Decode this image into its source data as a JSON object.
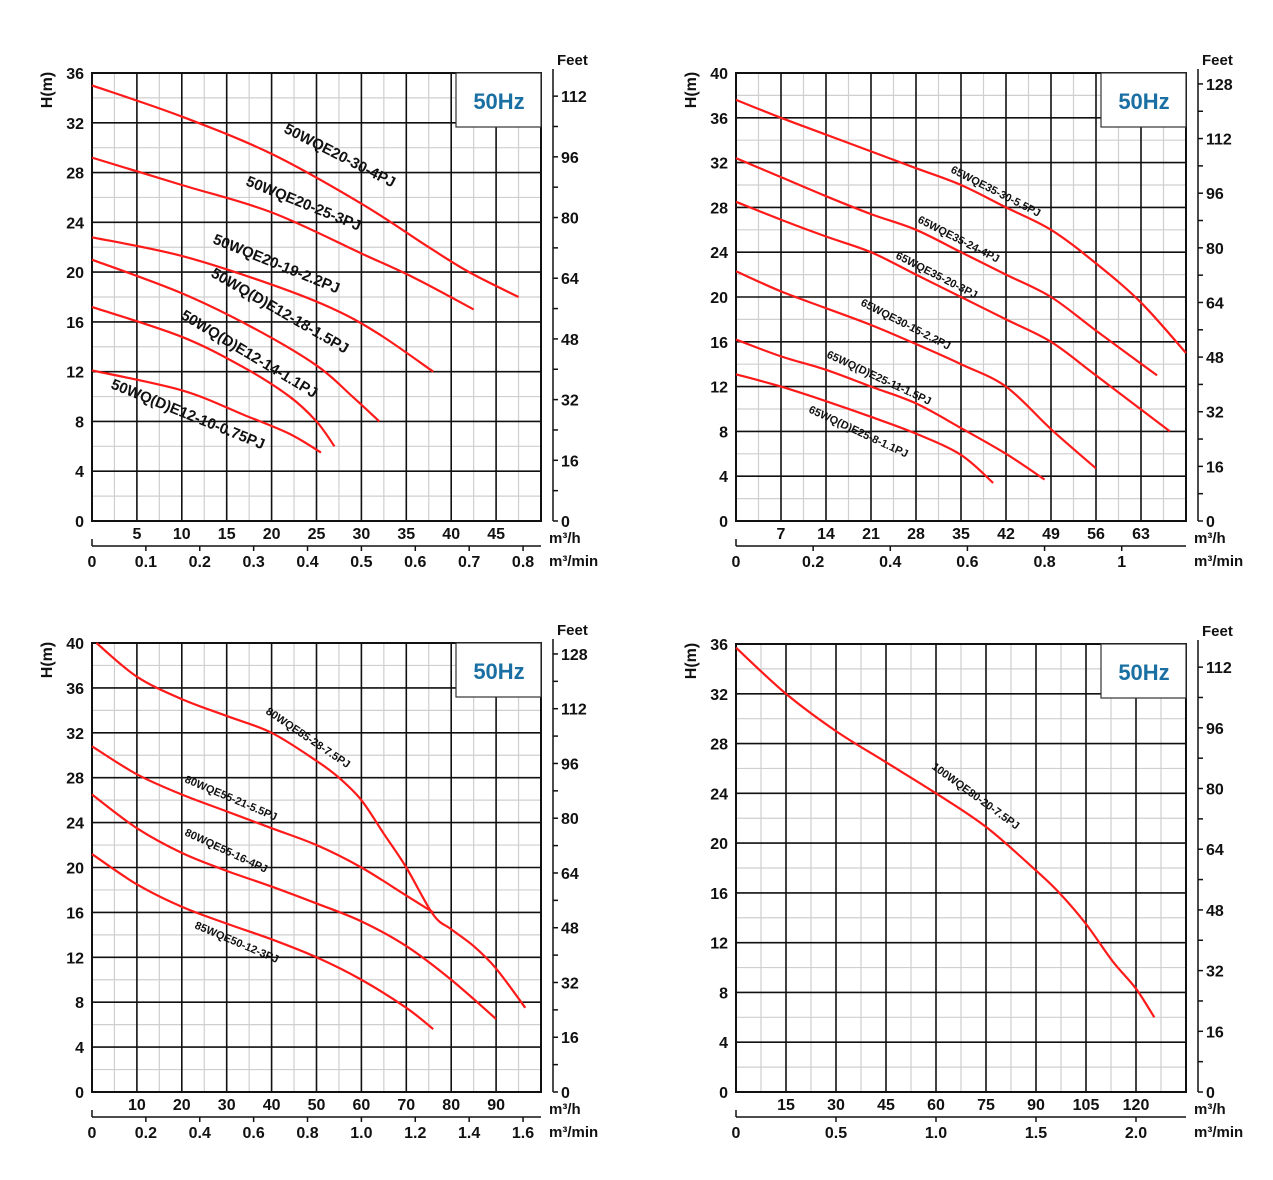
{
  "chart_data": [
    {
      "type": "line",
      "title": "",
      "badge": "50Hz",
      "ylabel": "H(m)",
      "ylabel_right": "Feet",
      "xlabel": "m³/h",
      "xlabel_secondary": "m³/min",
      "ylim": [
        0,
        36
      ],
      "xlim": [
        0,
        50
      ],
      "yticks": [
        0,
        4,
        8,
        12,
        16,
        20,
        24,
        28,
        32,
        36
      ],
      "xticks": [
        5,
        10,
        15,
        20,
        25,
        30,
        35,
        40,
        45
      ],
      "x2lim": [
        0,
        0.8333
      ],
      "x2ticks": [
        0,
        0.1,
        0.2,
        0.3,
        0.4,
        0.5,
        0.6,
        0.7,
        0.8
      ],
      "x2ticklabels": [
        "0",
        "0.1",
        "0.2",
        "0.3",
        "0.4",
        "0.5",
        "0.6",
        "0.7",
        "0.8"
      ],
      "y2lim": [
        0,
        118.1
      ],
      "y2ticks": [
        0,
        16,
        32,
        48,
        64,
        80,
        96,
        112
      ],
      "grid": true,
      "series": [
        {
          "name": "50WQE20-30-4PJ",
          "x": [
            0,
            10,
            20,
            30,
            37.5,
            42,
            47.5
          ],
          "y": [
            35,
            32.5,
            29.5,
            25.5,
            22,
            20,
            18
          ]
        },
        {
          "name": "50WQE20-25-3PJ",
          "x": [
            0,
            10,
            20,
            30,
            36,
            42.5
          ],
          "y": [
            29.2,
            27,
            24.8,
            21.5,
            19.5,
            17
          ]
        },
        {
          "name": "50WQE20-19-2.2PJ",
          "x": [
            0,
            10,
            20,
            27,
            32,
            38
          ],
          "y": [
            22.8,
            21.3,
            19,
            17,
            15,
            12
          ]
        },
        {
          "name": "50WQ(D)E12-18-1.5PJ",
          "x": [
            0,
            10,
            18,
            25,
            29,
            32
          ],
          "y": [
            21,
            18.3,
            15.5,
            12.5,
            10,
            8
          ]
        },
        {
          "name": "50WQ(D)E12-14-1.1PJ",
          "x": [
            0,
            10,
            17,
            22,
            25,
            27
          ],
          "y": [
            17.2,
            14.8,
            12.3,
            10,
            8,
            6
          ]
        },
        {
          "name": "50WQ(D)E12-10-0.75PJ",
          "x": [
            0,
            10,
            17,
            22,
            25.5
          ],
          "y": [
            12.1,
            10.5,
            8.5,
            7,
            5.5
          ]
        }
      ]
    },
    {
      "type": "line",
      "title": "",
      "badge": "50Hz",
      "ylabel": "H(m)",
      "ylabel_right": "Feet",
      "xlabel": "m³/h",
      "xlabel_secondary": "m³/min",
      "ylim": [
        0,
        40
      ],
      "xlim": [
        0,
        70
      ],
      "yticks": [
        0,
        4,
        8,
        12,
        16,
        20,
        24,
        28,
        32,
        36,
        40
      ],
      "xticks": [
        7,
        14,
        21,
        28,
        35,
        42,
        49,
        56,
        63
      ],
      "x2lim": [
        0,
        1.1667
      ],
      "x2ticks": [
        0,
        0.2,
        0.4,
        0.6,
        0.8,
        1.0
      ],
      "x2ticklabels": [
        "0",
        "0.2",
        "0.4",
        "0.6",
        "0.8",
        "1"
      ],
      "y2lim": [
        0,
        131.2
      ],
      "y2ticks": [
        0,
        16,
        32,
        48,
        64,
        80,
        96,
        112,
        128
      ],
      "grid": true,
      "series": [
        {
          "name": "65WQE35-30-5.5PJ",
          "x": [
            0,
            7,
            14,
            21,
            28,
            35,
            42,
            49,
            56,
            63,
            70
          ],
          "y": [
            37.6,
            36,
            34.5,
            33,
            31.5,
            30,
            28,
            26,
            23,
            19.5,
            15
          ]
        },
        {
          "name": "65WQE35-24-4PJ",
          "x": [
            0,
            7,
            14,
            21,
            28,
            35,
            42,
            49,
            56,
            65.5
          ],
          "y": [
            32.4,
            30.7,
            29,
            27.4,
            26,
            24,
            22,
            20,
            17,
            13
          ]
        },
        {
          "name": "65WQE35-20-3PJ",
          "x": [
            0,
            7,
            14,
            21,
            28,
            35,
            42,
            49,
            56,
            67.5
          ],
          "y": [
            28.5,
            26.9,
            25.4,
            24,
            22,
            20,
            18,
            16,
            13,
            8
          ]
        },
        {
          "name": "65WQE30-15-2.2PJ",
          "x": [
            0,
            7,
            14,
            21,
            28,
            35,
            42,
            49,
            56
          ],
          "y": [
            22.3,
            20.5,
            19,
            17.5,
            15.8,
            14,
            12,
            8.2,
            4.7
          ]
        },
        {
          "name": "65WQ(D)E25-11-1.5PJ",
          "x": [
            0,
            7,
            14,
            21,
            28,
            35,
            42,
            48
          ],
          "y": [
            16.2,
            14.7,
            13.5,
            12,
            10.5,
            8.3,
            6,
            3.7
          ]
        },
        {
          "name": "65WQ(D)E25-8-1.1PJ",
          "x": [
            0,
            7,
            14,
            21,
            28,
            35,
            40
          ],
          "y": [
            13.1,
            12,
            10.7,
            9.3,
            7.8,
            5.9,
            3.4
          ]
        }
      ]
    },
    {
      "type": "line",
      "title": "",
      "badge": "50Hz",
      "ylabel": "H(m)",
      "ylabel_right": "Feet",
      "xlabel": "m³/h",
      "xlabel_secondary": "m³/min",
      "ylim": [
        0,
        40
      ],
      "xlim": [
        0,
        100
      ],
      "yticks": [
        0,
        4,
        8,
        12,
        16,
        20,
        24,
        28,
        32,
        36,
        40
      ],
      "xticks": [
        10,
        20,
        30,
        40,
        50,
        60,
        70,
        80,
        90
      ],
      "x2lim": [
        0,
        1.6667
      ],
      "x2ticks": [
        0,
        0.2,
        0.4,
        0.6,
        0.8,
        1.0,
        1.2,
        1.4,
        1.6
      ],
      "x2ticklabels": [
        "0",
        "0.2",
        "0.4",
        "0.6",
        "0.8",
        "1.0",
        "1.2",
        "1.4",
        "1.6"
      ],
      "y2lim": [
        0,
        131.2
      ],
      "y2ticks": [
        0,
        16,
        32,
        48,
        64,
        80,
        96,
        112,
        128
      ],
      "grid": true,
      "series": [
        {
          "name": "80WQE55-28-7.5PJ",
          "x": [
            1,
            10,
            20,
            30,
            40,
            50,
            55,
            60,
            65,
            70,
            76,
            80,
            85,
            90,
            96.5
          ],
          "y": [
            40,
            37,
            35,
            33.5,
            32,
            29.5,
            28,
            26,
            23,
            20,
            15.8,
            14.5,
            13,
            11,
            7.5
          ]
        },
        {
          "name": "80WQE55-21-5.5PJ",
          "x": [
            0,
            10,
            20,
            30,
            40,
            50,
            60,
            70,
            76
          ],
          "y": [
            30.8,
            28.3,
            26.5,
            25,
            23.5,
            22,
            20,
            17.5,
            16
          ]
        },
        {
          "name": "80WQE55-16-4PJ",
          "x": [
            0,
            10,
            20,
            30,
            40,
            50,
            60,
            70,
            80,
            90
          ],
          "y": [
            26.5,
            23.5,
            21.3,
            19.7,
            18.3,
            16.8,
            15.2,
            13,
            10,
            6.5
          ]
        },
        {
          "name": "85WQE50-12-3PJ",
          "x": [
            0,
            10,
            20,
            30,
            40,
            50,
            60,
            70,
            76
          ],
          "y": [
            21.2,
            18.5,
            16.5,
            15,
            13.6,
            12,
            10,
            7.5,
            5.6
          ]
        }
      ]
    },
    {
      "type": "line",
      "title": "",
      "badge": "50Hz",
      "ylabel": "H(m)",
      "ylabel_right": "Feet",
      "xlabel": "m³/h",
      "xlabel_secondary": "m³/min",
      "ylim": [
        0,
        36
      ],
      "xlim": [
        0,
        135
      ],
      "yticks": [
        0,
        4,
        8,
        12,
        16,
        20,
        24,
        28,
        32,
        36
      ],
      "xticks": [
        15,
        30,
        45,
        60,
        75,
        90,
        105,
        120
      ],
      "x2lim": [
        0,
        2.25
      ],
      "x2ticks": [
        0,
        0.5,
        1.0,
        1.5,
        2.0
      ],
      "x2ticklabels": [
        "0",
        "0.5",
        "1.0",
        "1.5",
        "2.0"
      ],
      "y2lim": [
        0,
        118.1
      ],
      "y2ticks": [
        0,
        16,
        32,
        48,
        64,
        80,
        96,
        112
      ],
      "grid": true,
      "series": [
        {
          "name": "100WQE80-20-7.5PJ",
          "x": [
            0,
            15,
            30,
            45,
            60,
            75,
            90,
            97,
            105,
            113,
            120,
            125.5
          ],
          "y": [
            35.7,
            32,
            29,
            26.5,
            24,
            21.3,
            17.8,
            16,
            13.5,
            10.5,
            8.3,
            6
          ]
        }
      ]
    }
  ]
}
